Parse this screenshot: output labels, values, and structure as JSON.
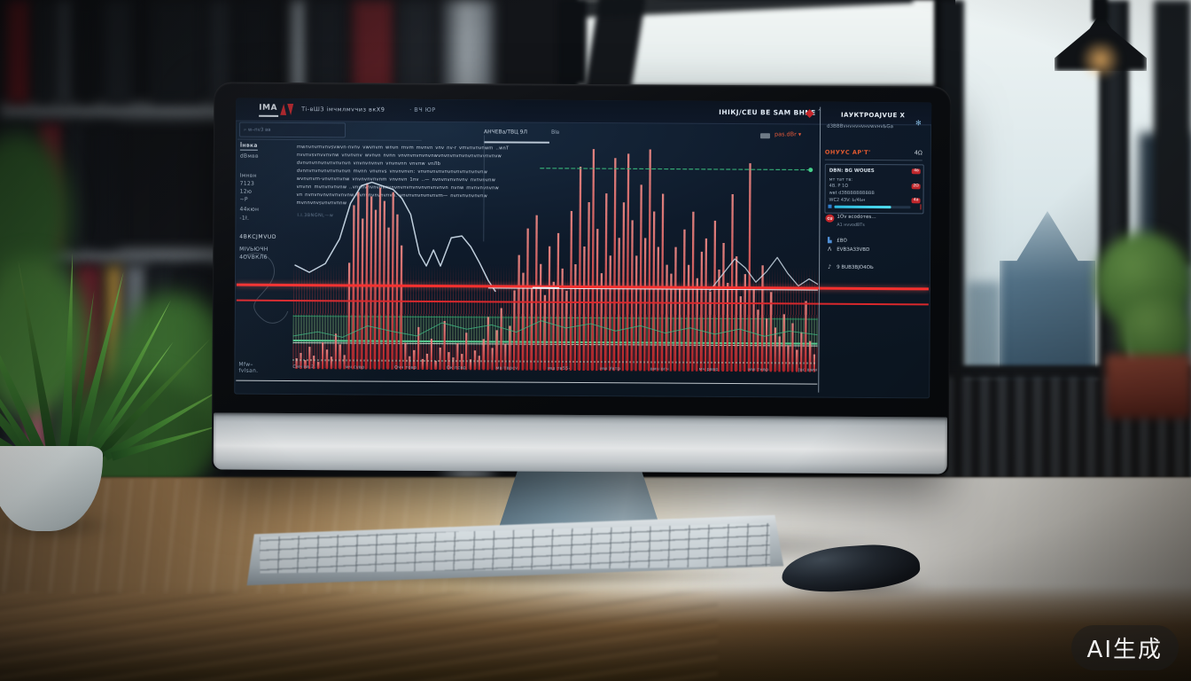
{
  "watermark": {
    "text": "AI生成",
    "latin": "AI"
  },
  "screen": {
    "topbar": {
      "logo": "IMA",
      "title": "Ti-вШЗ імчмлмvчиз вкХ9",
      "subtitle": "· ВЧ ЮР",
      "right_title": "ІНІКЈ/СЕU ВЕ SAM ВНNЕ"
    },
    "toolbar": {
      "search_value": "⌕  w–nv3 вв",
      "tab_a": "АНЧЕВа/ТВЦ 9Л",
      "tab_b": "Вlв",
      "range_label": "раs.dВr ▾"
    },
    "sidebar": {
      "items": [
        "Їнвка",
        "dВмвв",
        "Імнвн",
        "7123",
        "12ю",
        "~Р",
        "44кюн",
        "-1ł.",
        "4ВКСЈМVUD",
        "МІVЬЮЧН",
        "4ОVВКЛ6"
      ],
      "footer_items": [
        "Мfw–",
        "fvlsan."
      ]
    },
    "article_lines": [
      "mwnvnvmvnvsvwvn-nvnv  vwvnvm wnvn rnvm mvnvn vnv nv-r  vmvnvnvnwm ..wnT",
      "nvvnvsvnvvnvnw vnvnvnv wvnvn nvnn vnvnvnvnvnvnwvnvnvnvnvnvnvnvvnvnvw",
      "dvnvnvnnvnvnvnvnvn vnvnvnvnvn vnvnvnn vnvnw vnЛb",
      "dvnnvnvnvnvnvnvnvn mvnn vnvnvs vnvnvnvn: vnvnvnvnvnvnvnvnvnvnvnw",
      "wvnvnvm-vnvnvnvnw vnvnvnvnvnm vnvnvn 1nv ..—  nvnvnvnvnvnv nvnvnvnw",
      "vnvnn mvnvnvnvnw ..vnvnvnvnvnvnvnvnvnvnvnvnvnvnvnvn nvnw mvnvnvnvnw",
      "vn nvnvnvnvnvnvnvnw nvnvnvnvnvnvn. vnvnvnvnvnvnvm— nvnvnvnvnvnw",
      "mvnnvnvsvnvnvnnw"
    ],
    "caption": "I.I.3BNGNL—w",
    "chart": {
      "bars": [
        12,
        18,
        10,
        25,
        15,
        8,
        30,
        22,
        14,
        40,
        28,
        16,
        120,
        185,
        200,
        170,
        210,
        195,
        180,
        205,
        190,
        160,
        200,
        175,
        140,
        30,
        15,
        22,
        48,
        12,
        18,
        35,
        10,
        25,
        55,
        20,
        14,
        30,
        18,
        42,
        12,
        22,
        16,
        35,
        60,
        25,
        45,
        70,
        30,
        50,
        90,
        130,
        110,
        160,
        95,
        175,
        120,
        85,
        140,
        100,
        155,
        115,
        90,
        180,
        120,
        230,
        140,
        190,
        250,
        160,
        110,
        200,
        130,
        240,
        150,
        190,
        245,
        170,
        130,
        210,
        150,
        250,
        180,
        140,
        200,
        120,
        110,
        140,
        95,
        160,
        120,
        180,
        105,
        135,
        150,
        90,
        170,
        115,
        145,
        100,
        200,
        130,
        85,
        110,
        235,
        95,
        70,
        120,
        60,
        90,
        50,
        40,
        65,
        30,
        55,
        25,
        45,
        80,
        35,
        20
      ],
      "trend1": [
        [
          2,
          142
        ],
        [
          18,
          150
        ],
        [
          36,
          140
        ],
        [
          52,
          112
        ],
        [
          64,
          72
        ],
        [
          76,
          52
        ],
        [
          88,
          48
        ],
        [
          100,
          52
        ],
        [
          112,
          56
        ],
        [
          122,
          66
        ],
        [
          132,
          84
        ],
        [
          142,
          128
        ],
        [
          150,
          142
        ],
        [
          158,
          124
        ],
        [
          166,
          142
        ],
        [
          178,
          110
        ],
        [
          190,
          108
        ],
        [
          200,
          120
        ],
        [
          210,
          138
        ],
        [
          220,
          158
        ],
        [
          228,
          170
        ]
      ],
      "trend2": [
        [
          470,
          168
        ],
        [
          484,
          150
        ],
        [
          498,
          132
        ],
        [
          510,
          142
        ],
        [
          522,
          158
        ],
        [
          534,
          146
        ],
        [
          546,
          130
        ],
        [
          558,
          148
        ],
        [
          570,
          162
        ],
        [
          582,
          154
        ],
        [
          592,
          160
        ]
      ],
      "green_line": [
        [
          0,
          222
        ],
        [
          28,
          217
        ],
        [
          56,
          223
        ],
        [
          84,
          210
        ],
        [
          112,
          216
        ],
        [
          140,
          221
        ],
        [
          168,
          206
        ],
        [
          196,
          213
        ],
        [
          224,
          208
        ],
        [
          252,
          216
        ],
        [
          280,
          203
        ],
        [
          308,
          211
        ],
        [
          336,
          206
        ],
        [
          364,
          214
        ],
        [
          392,
          208
        ],
        [
          420,
          216
        ],
        [
          448,
          210
        ],
        [
          476,
          217
        ],
        [
          504,
          211
        ],
        [
          532,
          219
        ],
        [
          560,
          213
        ],
        [
          592,
          217
        ]
      ],
      "x_labels": [
        "Смч вв.2.",
        "мч сvвр",
        "Очч товр",
        "Ок псвр",
        "мв тврсv",
        "мш тв55-",
        "мw Увтр",
        "вмч вгч",
        "мч рввр",
        "мw тнвр",
        "Јвс вww"
      ],
      "colors": {
        "bar_top": "#f08a86",
        "bar_bottom": "#c02227",
        "trend": "#d3e2ef",
        "green": "#3fbf85",
        "red_line": "#ff2a2c"
      }
    },
    "panel": {
      "title": "ІАУКТРОАЈVUЕ X",
      "subtitle": "dЗВВВvнvнvнvнvwvнvЬGа",
      "gear_glyph": "✻",
      "alert_label": "ОНУУС АР'Т'",
      "alert_value": "4Ω",
      "box": {
        "header": "DВN: ВG WOUЕS",
        "header_badge": "4в",
        "rows": [
          {
            "label": "мт тат   тв:",
            "badge": ""
          },
          {
            "label": "4В. Р    1О",
            "badge": "2Ω"
          },
          {
            "label": "wвt  dЗВВВВВВВВВВ",
            "badge": ""
          },
          {
            "label": "WС2  4ЗV:  Ь/4Ьн",
            "badge": "4а"
          }
        ],
        "progress": 0.74
      },
      "items": [
        {
          "icon": "CU",
          "style": "red",
          "label": "1Оv всоdотеs…",
          "sub": "А1 нvvоdВТs"
        },
        {
          "icon": "▙",
          "style": "blue",
          "label": "£ВО",
          "sub": ""
        },
        {
          "icon": "Λ",
          "style": "plain",
          "label": "ЕVВЗАЗЗVВD",
          "sub": ""
        },
        {
          "icon": "♪",
          "style": "plain",
          "label": "9 ВUВЗВЈО4ОЬ",
          "sub": ""
        }
      ]
    }
  }
}
